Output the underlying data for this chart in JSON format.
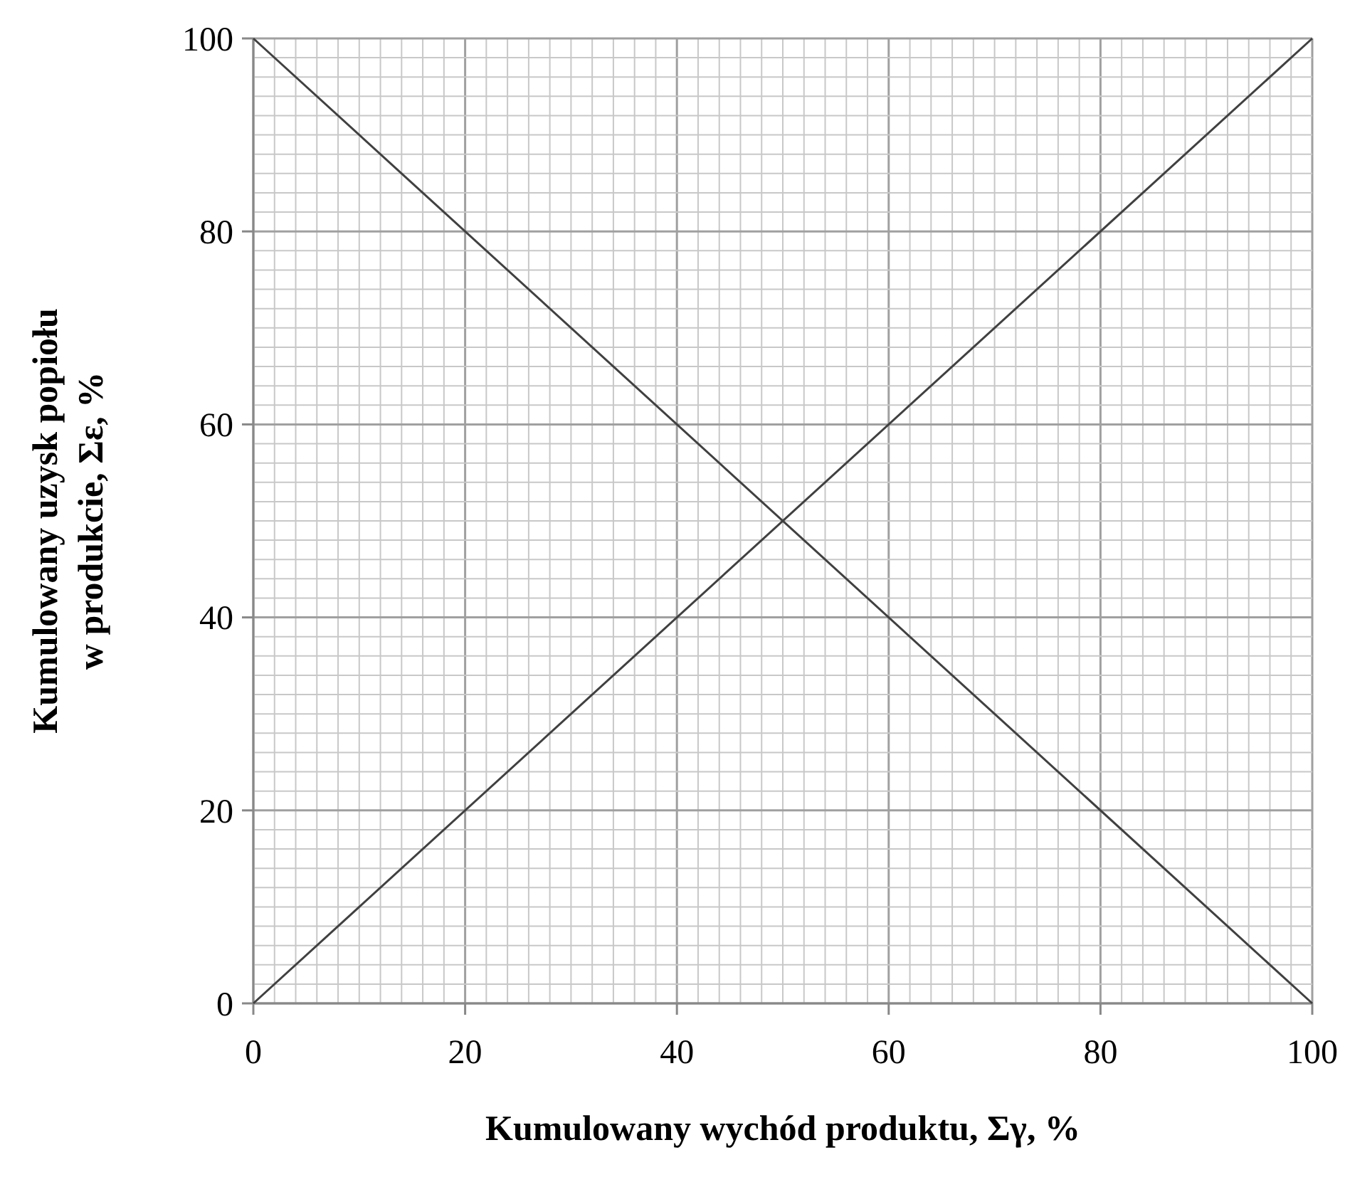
{
  "chart_data": {
    "type": "line",
    "xlabel": "Kumulowany wychód produktu, Σγ, %",
    "ylabel": "Kumulowany uzysk popiołu\nw produkcie, Σε, %",
    "x": [
      0,
      100
    ],
    "series": [
      {
        "color": "#404040",
        "values": [
          0,
          100
        ]
      },
      {
        "color": "#404040",
        "values": [
          100,
          0
        ]
      }
    ],
    "xlim": [
      0,
      100
    ],
    "ylim": [
      0,
      100
    ],
    "xticks": [
      0,
      {
        "value": 2,
        "label": null
      },
      {
        "value": 4,
        "label": null
      },
      {
        "value": 6,
        "label": null
      },
      {
        "value": 8,
        "label": null
      },
      {
        "value": 10,
        "label": null
      },
      {
        "value": 12,
        "label": null
      },
      {
        "value": 14,
        "label": null
      },
      {
        "value": 16,
        "label": null
      },
      {
        "value": 18,
        "label": null
      },
      20,
      {
        "value": 22,
        "label": null
      },
      {
        "value": 24,
        "label": null
      },
      {
        "value": 26,
        "label": null
      },
      {
        "value": 28,
        "label": null
      },
      {
        "value": 30,
        "label": null
      },
      {
        "value": 32,
        "label": null
      },
      {
        "value": 34,
        "label": null
      },
      {
        "value": 36,
        "label": null
      },
      {
        "value": 38,
        "label": null
      },
      40,
      {
        "value": 42,
        "label": null
      },
      {
        "value": 44,
        "label": null
      },
      {
        "value": 46,
        "label": null
      },
      {
        "value": 48,
        "label": null
      },
      {
        "value": 50,
        "label": null
      },
      {
        "value": 52,
        "label": null
      },
      {
        "value": 54,
        "label": null
      },
      {
        "value": 56,
        "label": null
      },
      {
        "value": 58,
        "label": null
      },
      60,
      {
        "value": 62,
        "label": null
      },
      {
        "value": 64,
        "label": null
      },
      {
        "value": 66,
        "label": null
      },
      {
        "value": 68,
        "label": null
      },
      {
        "value": 70,
        "label": null
      },
      {
        "value": 72,
        "label": null
      },
      {
        "value": 74,
        "label": null
      },
      {
        "value": 76,
        "label": null
      },
      {
        "value": 78,
        "label": null
      },
      80,
      {
        "value": 82,
        "label": null
      },
      {
        "value": 84,
        "label": null
      },
      {
        "value": 86,
        "label": null
      },
      {
        "value": 88,
        "label": null
      },
      {
        "value": 90,
        "label": null
      },
      {
        "value": 92,
        "label": null
      },
      {
        "value": 94,
        "label": null
      },
      {
        "value": 96,
        "label": null
      },
      {
        "value": 98,
        "label": null
      },
      100
    ],
    "yticks": [
      0,
      {
        "value": 2,
        "label": null
      },
      {
        "value": 4,
        "label": null
      },
      {
        "value": 6,
        "label": null
      },
      {
        "value": 8,
        "label": null
      },
      {
        "value": 10,
        "label": null
      },
      {
        "value": 12,
        "label": null
      },
      {
        "value": 14,
        "label": null
      },
      {
        "value": 16,
        "label": null
      },
      {
        "value": 18,
        "label": null
      },
      20,
      {
        "value": 22,
        "label": null
      },
      {
        "value": 24,
        "label": null
      },
      {
        "value": 26,
        "label": null
      },
      {
        "value": 28,
        "label": null
      },
      {
        "value": 30,
        "label": null
      },
      {
        "value": 32,
        "label": null
      },
      {
        "value": 34,
        "label": null
      },
      {
        "value": 36,
        "label": null
      },
      {
        "value": 38,
        "label": null
      },
      40,
      {
        "value": 42,
        "label": null
      },
      {
        "value": 44,
        "label": null
      },
      {
        "value": 46,
        "label": null
      },
      {
        "value": 48,
        "label": null
      },
      {
        "value": 50,
        "label": null
      },
      {
        "value": 52,
        "label": null
      },
      {
        "value": 54,
        "label": null
      },
      {
        "value": 56,
        "label": null
      },
      {
        "value": 58,
        "label": null
      },
      60,
      {
        "value": 62,
        "label": null
      },
      {
        "value": 64,
        "label": null
      },
      {
        "value": 66,
        "label": null
      },
      {
        "value": 68,
        "label": null
      },
      {
        "value": 70,
        "label": null
      },
      {
        "value": 72,
        "label": null
      },
      {
        "value": 74,
        "label": null
      },
      {
        "value": 76,
        "label": null
      },
      {
        "value": 78,
        "label": null
      },
      80,
      {
        "value": 82,
        "label": null
      },
      {
        "value": 84,
        "label": null
      },
      {
        "value": 86,
        "label": null
      },
      {
        "value": 88,
        "label": null
      },
      {
        "value": 90,
        "label": null
      },
      {
        "value": 92,
        "label": null
      },
      {
        "value": 94,
        "label": null
      },
      {
        "value": 96,
        "label": null
      },
      {
        "value": 98,
        "label": null
      },
      100
    ],
    "grid": true,
    "marker": "none",
    "line_style": "solid"
  }
}
